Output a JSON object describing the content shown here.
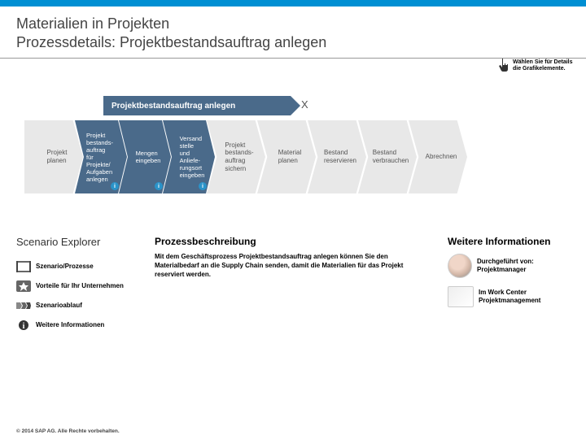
{
  "header": {
    "title_line1": "Materialien in Projekten",
    "title_line2": "Prozessdetails: Projektbestandsauftrag anlegen"
  },
  "hint": "Wählen Sie für Details die Grafikelemente.",
  "flow": {
    "sub_banner": "Projektbestandsauftrag anlegen",
    "close": "X",
    "outer_color": "#e8e8e8",
    "inner_color": "#4a6a8a",
    "inner_text": "#ffffff",
    "outer_text": "#555555",
    "steps": [
      {
        "label": "Projekt planen",
        "type": "outer",
        "info": false
      },
      {
        "label": "Projekt bestands-auftrag für Projekte/ Aufgaben anlegen",
        "type": "inner",
        "info": true
      },
      {
        "label": "Mengen eingeben",
        "type": "inner",
        "info": true
      },
      {
        "label": "Versand stelle und Anliefe- rungsort eingeben",
        "type": "inner",
        "info": true
      },
      {
        "label": "Projekt bestands- auftrag sichern",
        "type": "outer",
        "info": false
      },
      {
        "label": "Material planen",
        "type": "outer",
        "info": false
      },
      {
        "label": "Bestand reservieren",
        "type": "outer",
        "info": false
      },
      {
        "label": "Bestand verbrauchen",
        "type": "outer",
        "info": false
      },
      {
        "label": "Abrechnen",
        "type": "outer",
        "info": false
      }
    ]
  },
  "explorer": {
    "title": "Scenario Explorer",
    "items": [
      {
        "label": "Szenario/Prozesse",
        "icon": "film"
      },
      {
        "label": "Vorteile für Ihr Unternehmen",
        "icon": "star"
      },
      {
        "label": "Szenarioablauf",
        "icon": "flow"
      },
      {
        "label": "Weitere Informationen",
        "icon": "info"
      }
    ]
  },
  "description": {
    "title": "Prozessbeschreibung",
    "body": "Mit dem Geschäftsprozess Projektbestandsauftrag anlegen können Sie den Materialbedarf an die Supply Chain senden, damit die Materialien für das Projekt reserviert werden."
  },
  "more_info": {
    "title": "Weitere Informationen",
    "items": [
      {
        "label": "Durchgeführt von: Projektmanager",
        "img": "avatar"
      },
      {
        "label": "Im Work Center Projektmanagement",
        "img": "screen"
      }
    ]
  },
  "copyright": "© 2014 SAP AG. Alle Rechte vorbehalten."
}
